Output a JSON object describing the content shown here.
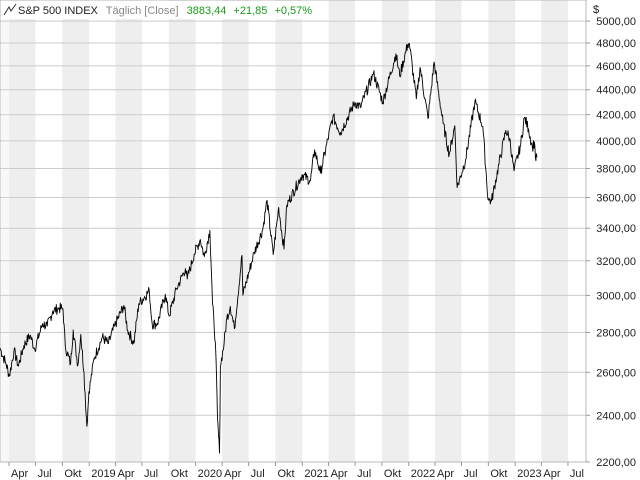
{
  "header": {
    "symbol": "S&P 500 INDEX",
    "interval": "Täglich [Close]",
    "last_value": "3883,44",
    "change_abs": "+21,85",
    "change_pct": "+0,57%",
    "change_color": "#1a9a1a",
    "icon": "line-chart-icon"
  },
  "chart_data": {
    "type": "line",
    "title": "S&P 500 INDEX",
    "xlabel": "",
    "ylabel": "",
    "currency_label": "$",
    "y_scale": "log",
    "ylim": [
      2200,
      5200
    ],
    "xlim": [
      "2018-03-01",
      "2023-09-01"
    ],
    "grid": true,
    "legend": "none",
    "line_color": "#000000",
    "y_ticks": [
      {
        "value": 2200,
        "label": "2200,00"
      },
      {
        "value": 2400,
        "label": "2400,00"
      },
      {
        "value": 2600,
        "label": "2600,00"
      },
      {
        "value": 2800,
        "label": "2800,00"
      },
      {
        "value": 3000,
        "label": "3000,00"
      },
      {
        "value": 3200,
        "label": "3200,00"
      },
      {
        "value": 3400,
        "label": "3400,00"
      },
      {
        "value": 3600,
        "label": "3600,00"
      },
      {
        "value": 3800,
        "label": "3800,00"
      },
      {
        "value": 4000,
        "label": "4000,00"
      },
      {
        "value": 4200,
        "label": "4200,00"
      },
      {
        "value": 4400,
        "label": "4400,00"
      },
      {
        "value": 4600,
        "label": "4600,00"
      },
      {
        "value": 4800,
        "label": "4800,00"
      },
      {
        "value": 5000,
        "label": "5000,00"
      }
    ],
    "x_ticks": [
      {
        "date": "2018-04-01",
        "label": "Apr"
      },
      {
        "date": "2018-07-01",
        "label": "Jul"
      },
      {
        "date": "2018-10-01",
        "label": "Okt"
      },
      {
        "date": "2019-01-01",
        "label": "2019"
      },
      {
        "date": "2019-04-01",
        "label": "Apr"
      },
      {
        "date": "2019-07-01",
        "label": "Jul"
      },
      {
        "date": "2019-10-01",
        "label": "Okt"
      },
      {
        "date": "2020-01-01",
        "label": "2020"
      },
      {
        "date": "2020-04-01",
        "label": "Apr"
      },
      {
        "date": "2020-07-01",
        "label": "Jul"
      },
      {
        "date": "2020-10-01",
        "label": "Okt"
      },
      {
        "date": "2021-01-01",
        "label": "2021"
      },
      {
        "date": "2021-04-01",
        "label": "Apr"
      },
      {
        "date": "2021-07-01",
        "label": "Jul"
      },
      {
        "date": "2021-10-01",
        "label": "Okt"
      },
      {
        "date": "2022-01-01",
        "label": "2022"
      },
      {
        "date": "2022-04-01",
        "label": "Apr"
      },
      {
        "date": "2022-07-01",
        "label": "Jul"
      },
      {
        "date": "2022-10-01",
        "label": "Okt"
      },
      {
        "date": "2023-01-01",
        "label": "2023"
      },
      {
        "date": "2023-04-01",
        "label": "Apr"
      },
      {
        "date": "2023-07-01",
        "label": "Jul"
      }
    ],
    "series": [
      {
        "values": [
          [
            "2018-03-01",
            2720
          ],
          [
            "2018-03-22",
            2640
          ],
          [
            "2018-04-02",
            2582
          ],
          [
            "2018-04-18",
            2708
          ],
          [
            "2018-05-03",
            2630
          ],
          [
            "2018-05-22",
            2733
          ],
          [
            "2018-06-12",
            2786
          ],
          [
            "2018-06-28",
            2716
          ],
          [
            "2018-07-25",
            2846
          ],
          [
            "2018-08-10",
            2833
          ],
          [
            "2018-08-29",
            2914
          ],
          [
            "2018-09-20",
            2930
          ],
          [
            "2018-10-03",
            2925
          ],
          [
            "2018-10-11",
            2728
          ],
          [
            "2018-10-29",
            2641
          ],
          [
            "2018-11-07",
            2813
          ],
          [
            "2018-11-23",
            2633
          ],
          [
            "2018-12-03",
            2790
          ],
          [
            "2018-12-14",
            2600
          ],
          [
            "2018-12-24",
            2351
          ],
          [
            "2018-12-31",
            2507
          ],
          [
            "2019-01-18",
            2670
          ],
          [
            "2019-02-15",
            2775
          ],
          [
            "2019-03-08",
            2743
          ],
          [
            "2019-03-29",
            2834
          ],
          [
            "2019-04-30",
            2945
          ],
          [
            "2019-05-13",
            2812
          ],
          [
            "2019-06-03",
            2744
          ],
          [
            "2019-06-20",
            2954
          ],
          [
            "2019-07-26",
            3025
          ],
          [
            "2019-08-05",
            2844
          ],
          [
            "2019-08-23",
            2847
          ],
          [
            "2019-09-19",
            3006
          ],
          [
            "2019-10-02",
            2887
          ],
          [
            "2019-10-28",
            3039
          ],
          [
            "2019-11-27",
            3153
          ],
          [
            "2019-12-03",
            3093
          ],
          [
            "2019-12-27",
            3240
          ],
          [
            "2020-01-17",
            3329
          ],
          [
            "2020-01-31",
            3225
          ],
          [
            "2020-02-19",
            3386
          ],
          [
            "2020-02-28",
            2954
          ],
          [
            "2020-03-09",
            2746
          ],
          [
            "2020-03-16",
            2386
          ],
          [
            "2020-03-23",
            2237
          ],
          [
            "2020-03-26",
            2630
          ],
          [
            "2020-04-08",
            2750
          ],
          [
            "2020-04-17",
            2875
          ],
          [
            "2020-04-29",
            2940
          ],
          [
            "2020-05-13",
            2820
          ],
          [
            "2020-06-08",
            3232
          ],
          [
            "2020-06-11",
            3002
          ],
          [
            "2020-07-20",
            3251
          ],
          [
            "2020-08-18",
            3390
          ],
          [
            "2020-09-02",
            3580
          ],
          [
            "2020-09-23",
            3237
          ],
          [
            "2020-10-12",
            3534
          ],
          [
            "2020-10-30",
            3270
          ],
          [
            "2020-11-09",
            3550
          ],
          [
            "2020-12-31",
            3756
          ],
          [
            "2021-01-29",
            3714
          ],
          [
            "2021-02-12",
            3934
          ],
          [
            "2021-03-04",
            3768
          ],
          [
            "2021-04-16",
            4185
          ],
          [
            "2021-05-12",
            4063
          ],
          [
            "2021-06-30",
            4297
          ],
          [
            "2021-07-19",
            4258
          ],
          [
            "2021-08-31",
            4523
          ],
          [
            "2021-09-02",
            4537
          ],
          [
            "2021-10-04",
            4300
          ],
          [
            "2021-11-18",
            4704
          ],
          [
            "2021-12-01",
            4513
          ],
          [
            "2021-12-28",
            4786
          ],
          [
            "2022-01-03",
            4797
          ],
          [
            "2022-01-27",
            4326
          ],
          [
            "2022-02-09",
            4587
          ],
          [
            "2022-03-08",
            4170
          ],
          [
            "2022-03-29",
            4632
          ],
          [
            "2022-04-29",
            4132
          ],
          [
            "2022-05-20",
            3901
          ],
          [
            "2022-06-08",
            4115
          ],
          [
            "2022-06-16",
            3667
          ],
          [
            "2022-07-15",
            3863
          ],
          [
            "2022-08-16",
            4305
          ],
          [
            "2022-09-12",
            4110
          ],
          [
            "2022-09-30",
            3586
          ],
          [
            "2022-10-12",
            3577
          ],
          [
            "2022-11-30",
            4080
          ],
          [
            "2022-12-13",
            4019
          ],
          [
            "2022-12-28",
            3783
          ],
          [
            "2023-01-20",
            3972
          ],
          [
            "2023-02-02",
            4179
          ],
          [
            "2023-02-16",
            4090
          ],
          [
            "2023-03-01",
            3951
          ],
          [
            "2023-03-08",
            3992
          ],
          [
            "2023-03-13",
            3855
          ],
          [
            "2023-03-17",
            3883
          ]
        ]
      }
    ]
  }
}
